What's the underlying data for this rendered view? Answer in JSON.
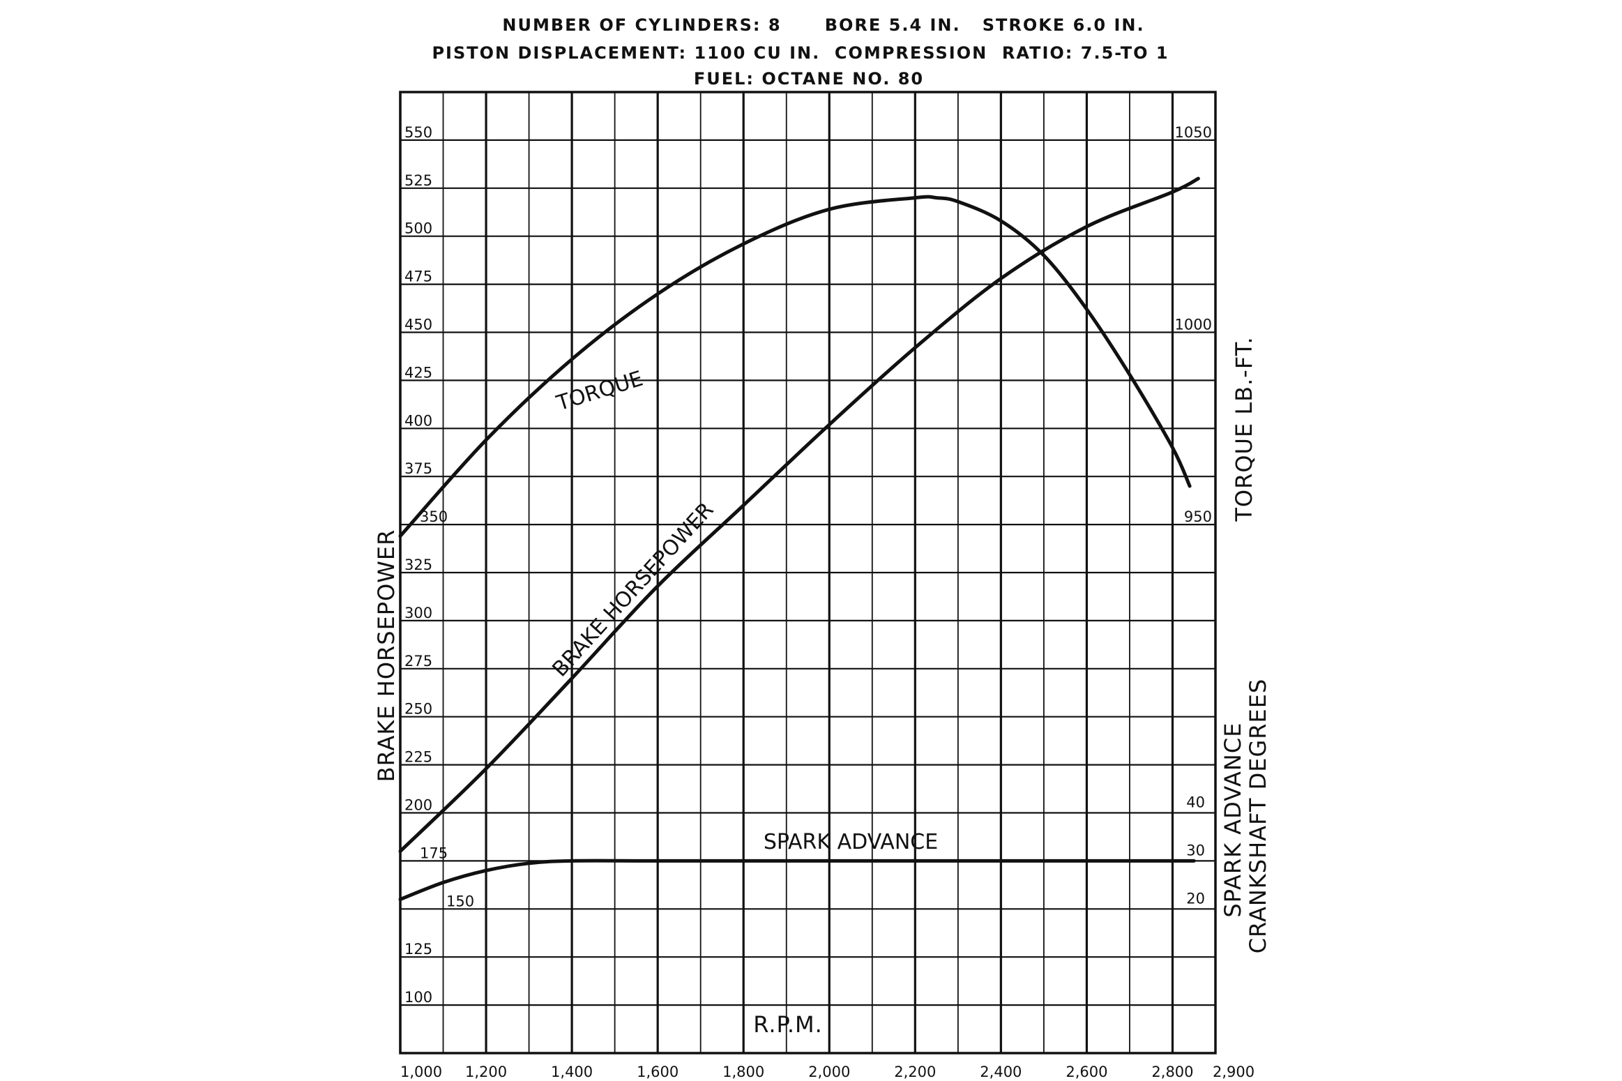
{
  "header": {
    "line1": "NUMBER OF CYLINDERS: 8      BORE 5.4 IN.   STROKE 6.0 IN.",
    "line2": "PISTON DISPLACEMENT: 1100 CU IN.  COMPRESSION  RATIO: 7.5-TO 1",
    "line3": "FUEL: OCTANE NO. 80"
  },
  "chart_data": {
    "type": "line",
    "title": "",
    "xlabel": "R.P.M.",
    "ylabel": "BRAKE HORSEPOWER",
    "y2label": "TORQUE LB.-FT.",
    "y3label": "SPARK ADVANCE\nCRANKSHAFT DEGREES",
    "xlim": [
      1000,
      2900
    ],
    "ylim": [
      75,
      575
    ],
    "grid": true,
    "x_ticks": [
      "1,000",
      "1,200",
      "1,400",
      "1,600",
      "1,800",
      "2,000",
      "2,200",
      "2,400",
      "2,600",
      "2,800",
      "2,900"
    ],
    "y_ticks": [
      "100",
      "125",
      "150",
      "175",
      "200",
      "225",
      "250",
      "275",
      "300",
      "325",
      "350",
      "375",
      "400",
      "425",
      "450",
      "475",
      "500",
      "525",
      "550"
    ],
    "torque_ticks": [
      {
        "label": "1050",
        "value": 1050
      },
      {
        "label": "1000",
        "value": 1000
      },
      {
        "label": "950",
        "value": 950
      }
    ],
    "spark_ticks": [
      {
        "label": "40",
        "value": 40
      },
      {
        "label": "30",
        "value": 30
      },
      {
        "label": "20",
        "value": 20
      }
    ],
    "series": [
      {
        "name": "BRAKE HORSEPOWER",
        "axis": "hp",
        "x": [
          1000,
          1200,
          1400,
          1600,
          1800,
          2000,
          2200,
          2400,
          2600,
          2800,
          2860
        ],
        "y": [
          180,
          223,
          270,
          318,
          360,
          402,
          442,
          478,
          505,
          523,
          530
        ]
      },
      {
        "name": "TORQUE",
        "axis": "torque",
        "x": [
          1000,
          1200,
          1400,
          1600,
          1800,
          2000,
          2200,
          2250,
          2300,
          2400,
          2500,
          2600,
          2700,
          2800,
          2840
        ],
        "y": [
          947,
          972,
          993,
          1010,
          1023,
          1032,
          1035,
          1035,
          1034,
          1029,
          1020,
          1006,
          989,
          970,
          960
        ]
      },
      {
        "name": "SPARK ADVANCE",
        "axis": "spark",
        "x": [
          1000,
          1100,
          1200,
          1300,
          1400,
          1600,
          2000,
          2400,
          2850
        ],
        "y": [
          22,
          25.5,
          28,
          29.5,
          30,
          30,
          30,
          30,
          30
        ]
      }
    ]
  }
}
